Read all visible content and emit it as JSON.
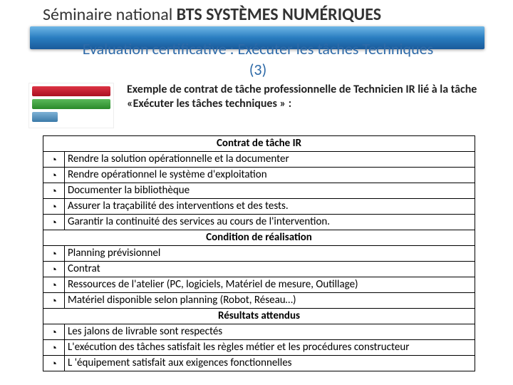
{
  "header_light": "Séminaire national ",
  "header_bold": "BTS SYSTÈMES NUMÉRIQUES",
  "subtitle_line1": "Evaluation certificative : Exécuter les tâches Techniques",
  "subtitle_line2": "(3)",
  "exemple_text": "Exemple de contrat de tâche professionnelle de Technicien IR lié à la tâche «Exécuter les tâches techniques » :",
  "table": {
    "section1_title": "Contrat de tâche IR",
    "section1_items": [
      "Rendre la solution opérationnelle et la documenter",
      "Rendre opérationnel le système d'exploitation",
      "Documenter la bibliothèque",
      "Assurer la traçabilité des interventions et des tests.",
      "Garantir la continuité des services au cours de l'intervention."
    ],
    "section2_title": "Condition de réalisation",
    "section2_items": [
      "Planning prévisionnel",
      "Contrat",
      "Ressources de l'atelier (PC, logiciels, Matériel de mesure, Outillage)",
      "Matériel disponible selon planning (Robot, Réseau…)"
    ],
    "section3_title": "Résultats attendus",
    "section3_items": [
      "Les jalons de livrable sont respectés",
      "L'exécution des tâches satisfait les règles métier et les procédures constructeur",
      "L 'équipement satisfait aux exigences fonctionnelles"
    ]
  },
  "bullet_glyph": "◔",
  "colors": {
    "banner_top": "#6fb7e6",
    "banner_mid": "#2a7dc0",
    "banner_bot": "#1a5a9a",
    "subtitle": "#2e6aa8",
    "border": "#000000",
    "text": "#222222"
  },
  "fontsizes": {
    "header": 24,
    "subtitle": 22,
    "exemple": 16,
    "table": 15
  }
}
